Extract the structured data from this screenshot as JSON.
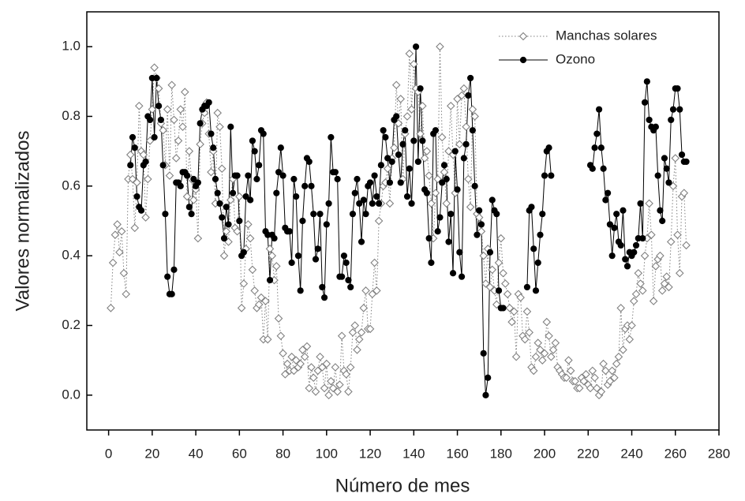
{
  "chart_data": {
    "type": "line",
    "xlabel": "Número de mes",
    "ylabel": "Valores normalizados",
    "x": [
      1,
      2,
      3,
      4,
      5,
      6,
      7,
      8,
      9,
      10,
      11,
      12,
      13,
      14,
      15,
      16,
      17,
      18,
      19,
      20,
      21,
      22,
      23,
      24,
      25,
      26,
      27,
      28,
      29,
      30,
      31,
      32,
      33,
      34,
      35,
      36,
      37,
      38,
      39,
      40,
      41,
      42,
      43,
      44,
      45,
      46,
      47,
      48,
      49,
      50,
      51,
      52,
      53,
      54,
      55,
      56,
      57,
      58,
      59,
      60,
      61,
      62,
      63,
      64,
      65,
      66,
      67,
      68,
      69,
      70,
      71,
      72,
      73,
      74,
      75,
      76,
      77,
      78,
      79,
      80,
      81,
      82,
      83,
      84,
      85,
      86,
      87,
      88,
      89,
      90,
      91,
      92,
      93,
      94,
      95,
      96,
      97,
      98,
      99,
      100,
      101,
      102,
      103,
      104,
      105,
      106,
      107,
      108,
      109,
      110,
      111,
      112,
      113,
      114,
      115,
      116,
      117,
      118,
      119,
      120,
      121,
      122,
      123,
      124,
      125,
      126,
      127,
      128,
      129,
      130,
      131,
      132,
      133,
      134,
      135,
      136,
      137,
      138,
      139,
      140,
      141,
      142,
      143,
      144,
      145,
      146,
      147,
      148,
      149,
      150,
      151,
      152,
      153,
      154,
      155,
      156,
      157,
      158,
      159,
      160,
      161,
      162,
      163,
      164,
      165,
      166,
      167,
      168,
      169,
      170,
      171,
      172,
      173,
      174,
      175,
      176,
      177,
      178,
      179,
      180,
      181,
      182,
      183,
      184,
      185,
      186,
      187,
      188,
      189,
      190,
      191,
      192,
      193,
      194,
      195,
      196,
      197,
      198,
      199,
      200,
      201,
      202,
      203,
      204,
      205,
      206,
      207,
      208,
      209,
      210,
      211,
      212,
      213,
      214,
      215,
      216,
      217,
      218,
      219,
      220,
      221,
      222,
      223,
      224,
      225,
      226,
      227,
      228,
      229,
      230,
      231,
      232,
      233,
      234,
      235,
      236,
      237,
      238,
      239,
      240,
      241,
      242,
      243,
      244,
      245,
      246,
      247,
      248,
      249,
      250,
      251,
      252,
      253,
      254,
      255,
      256,
      257,
      258,
      259,
      260,
      261,
      262,
      263,
      264,
      265
    ],
    "series": [
      {
        "name": "Manchas solares",
        "color": "#808080",
        "style": "dotted",
        "marker": "diamond",
        "values": [
          0.25,
          0.38,
          0.46,
          0.49,
          0.41,
          0.47,
          0.35,
          0.29,
          0.62,
          0.69,
          0.62,
          0.48,
          0.61,
          0.83,
          0.7,
          0.69,
          0.51,
          0.62,
          0.73,
          0.82,
          0.94,
          0.91,
          0.88,
          0.78,
          0.76,
          0.66,
          0.82,
          0.63,
          0.89,
          0.79,
          0.68,
          0.73,
          0.82,
          0.77,
          0.87,
          0.57,
          0.7,
          0.62,
          0.56,
          0.59,
          0.45,
          0.72,
          0.78,
          0.81,
          0.84,
          0.75,
          0.64,
          0.7,
          0.55,
          0.81,
          0.77,
          0.65,
          0.4,
          0.47,
          0.44,
          0.56,
          0.62,
          0.48,
          0.47,
          0.57,
          0.25,
          0.32,
          0.42,
          0.49,
          0.45,
          0.36,
          0.3,
          0.25,
          0.26,
          0.28,
          0.16,
          0.27,
          0.16,
          0.42,
          0.4,
          0.33,
          0.37,
          0.22,
          0.17,
          0.12,
          0.06,
          0.09,
          0.07,
          0.11,
          0.07,
          0.1,
          0.08,
          0.09,
          0.13,
          0.11,
          0.14,
          0.02,
          0.08,
          0.05,
          0.01,
          0.07,
          0.11,
          0.08,
          0.02,
          0.09,
          0.0,
          0.04,
          0.02,
          0.08,
          0.01,
          0.03,
          0.17,
          0.07,
          0.06,
          0.01,
          0.08,
          0.18,
          0.2,
          0.13,
          0.16,
          0.18,
          0.25,
          0.3,
          0.19,
          0.19,
          0.29,
          0.38,
          0.3,
          0.5,
          0.55,
          0.6,
          0.61,
          0.65,
          0.55,
          0.68,
          0.71,
          0.89,
          0.78,
          0.85,
          0.62,
          0.75,
          0.8,
          0.98,
          0.82,
          0.95,
          0.88,
          0.87,
          0.75,
          0.83,
          0.68,
          0.7,
          0.63,
          0.55,
          0.45,
          0.58,
          0.62,
          1.0,
          0.74,
          0.64,
          0.55,
          0.7,
          0.83,
          0.69,
          0.58,
          0.85,
          0.72,
          0.86,
          0.88,
          0.77,
          0.62,
          0.54,
          0.82,
          0.8,
          0.52,
          0.51,
          0.47,
          0.4,
          0.32,
          0.42,
          0.31,
          0.36,
          0.3,
          0.26,
          0.38,
          0.45,
          0.35,
          0.32,
          0.29,
          0.25,
          0.21,
          0.24,
          0.11,
          0.29,
          0.28,
          0.17,
          0.16,
          0.24,
          0.18,
          0.08,
          0.07,
          0.11,
          0.15,
          0.13,
          0.1,
          0.12,
          0.21,
          0.17,
          0.11,
          0.13,
          0.15,
          0.08,
          0.07,
          0.06,
          0.05,
          0.05,
          0.1,
          0.07,
          0.04,
          0.04,
          0.02,
          0.02,
          0.05,
          0.04,
          0.06,
          0.03,
          0.02,
          0.07,
          0.05,
          0.02,
          0.0,
          0.01,
          0.09,
          0.07,
          0.03,
          0.04,
          0.07,
          0.05,
          0.09,
          0.11,
          0.25,
          0.13,
          0.19,
          0.2,
          0.16,
          0.2,
          0.27,
          0.29,
          0.35,
          0.32,
          0.3,
          0.4,
          0.45,
          0.55,
          0.46,
          0.27,
          0.37,
          0.39,
          0.4,
          0.3,
          0.32,
          0.34,
          0.31,
          0.44,
          0.6,
          0.68,
          0.46,
          0.35,
          0.57,
          0.58,
          0.43
        ]
      },
      {
        "name": "Ozono",
        "color": "#000000",
        "style": "solid",
        "marker": "circle",
        "values": [
          null,
          null,
          null,
          null,
          null,
          null,
          null,
          null,
          null,
          0.66,
          0.74,
          0.71,
          0.57,
          0.54,
          0.53,
          0.66,
          0.67,
          0.8,
          0.79,
          0.91,
          0.74,
          0.91,
          0.83,
          0.79,
          0.66,
          0.52,
          0.34,
          0.29,
          0.29,
          0.36,
          0.61,
          0.61,
          0.6,
          0.64,
          0.64,
          0.63,
          0.54,
          0.52,
          0.62,
          0.6,
          0.61,
          0.78,
          0.82,
          0.83,
          0.83,
          0.84,
          0.75,
          0.71,
          0.62,
          0.58,
          0.55,
          0.51,
          0.45,
          0.54,
          0.49,
          0.77,
          0.58,
          0.63,
          0.63,
          0.5,
          0.4,
          0.41,
          0.57,
          0.63,
          0.56,
          0.73,
          0.7,
          0.62,
          0.66,
          0.76,
          0.75,
          0.47,
          0.46,
          0.33,
          0.46,
          0.45,
          0.58,
          0.64,
          0.71,
          0.63,
          0.48,
          0.47,
          0.47,
          0.38,
          0.62,
          0.57,
          0.4,
          0.3,
          0.5,
          0.6,
          0.68,
          0.67,
          0.6,
          0.52,
          0.39,
          0.42,
          0.52,
          0.31,
          0.28,
          0.49,
          0.55,
          0.74,
          0.64,
          0.64,
          0.62,
          0.34,
          0.34,
          0.4,
          0.38,
          0.33,
          0.31,
          0.52,
          0.58,
          0.62,
          0.55,
          0.44,
          0.56,
          0.52,
          0.6,
          0.61,
          0.55,
          0.63,
          0.57,
          0.55,
          0.66,
          0.76,
          0.74,
          0.68,
          0.61,
          0.67,
          0.79,
          0.8,
          0.69,
          0.61,
          0.72,
          0.76,
          0.57,
          0.65,
          0.55,
          0.73,
          1.0,
          0.67,
          0.88,
          0.73,
          0.59,
          0.58,
          0.45,
          0.38,
          0.75,
          0.76,
          0.47,
          0.51,
          0.61,
          0.66,
          0.62,
          0.44,
          0.52,
          0.35,
          0.7,
          0.59,
          0.41,
          0.34,
          0.68,
          0.72,
          0.86,
          0.91,
          0.76,
          0.6,
          0.46,
          0.53,
          0.49,
          0.12,
          0.0,
          0.05,
          0.41,
          0.56,
          0.53,
          0.52,
          0.3,
          0.25,
          0.25,
          null,
          null,
          null,
          null,
          null,
          null,
          null,
          null,
          null,
          null,
          0.31,
          0.53,
          0.54,
          0.42,
          0.3,
          0.38,
          0.46,
          0.52,
          0.63,
          0.7,
          0.71,
          0.63,
          null,
          null,
          null,
          null,
          null,
          null,
          null,
          null,
          null,
          null,
          null,
          null,
          null,
          null,
          null,
          null,
          null,
          0.66,
          0.65,
          0.71,
          0.75,
          0.82,
          0.71,
          0.65,
          0.56,
          0.58,
          0.49,
          0.4,
          0.48,
          0.52,
          0.44,
          0.43,
          0.53,
          0.39,
          0.37,
          0.41,
          0.4,
          0.41,
          0.43,
          0.45,
          0.55,
          0.45,
          0.84,
          0.9,
          0.79,
          0.77,
          0.76,
          0.77,
          0.63,
          0.53,
          0.5,
          0.68,
          0.65,
          0.61,
          0.79,
          0.82,
          0.88,
          0.88,
          0.82,
          0.69,
          0.67,
          0.67
        ]
      }
    ],
    "xlim": [
      -10,
      280
    ],
    "xticks": [
      0,
      20,
      40,
      60,
      80,
      100,
      120,
      140,
      160,
      180,
      200,
      220,
      240,
      260,
      280
    ],
    "ylim": [
      -0.1,
      1.1
    ],
    "yticks": [
      {
        "value": 0,
        "label": "0.0"
      },
      0.2,
      0.4,
      0.6,
      0.8,
      {
        "value": 1,
        "label": "1.0"
      }
    ],
    "legend": "upper right"
  }
}
